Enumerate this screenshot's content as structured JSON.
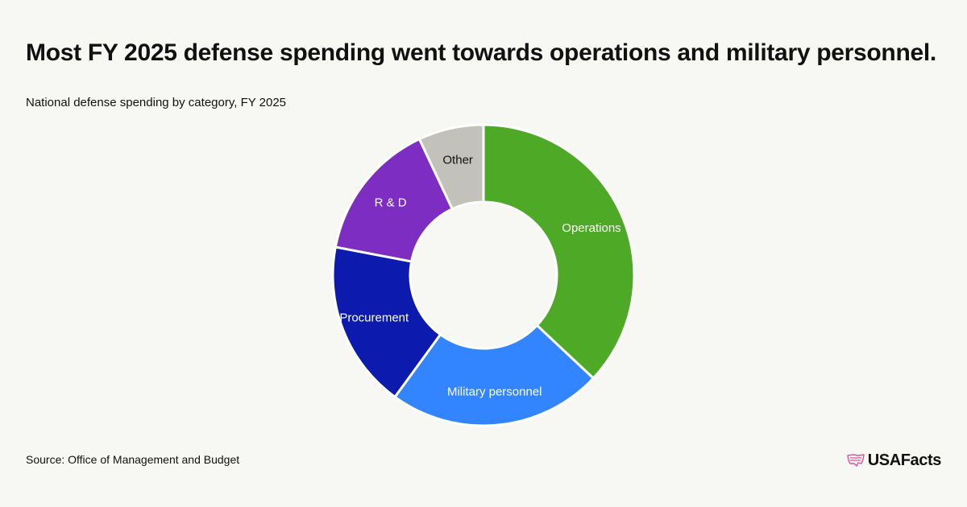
{
  "title": "Most FY 2025 defense spending went towards operations and military personnel.",
  "subtitle": "National defense spending by category, FY 2025",
  "source": "Source: Office of Management and Budget",
  "brand": {
    "name": "USAFacts",
    "mark_icon": "us-map-flag-icon",
    "mark_color": "#e0509a"
  },
  "chart_data": {
    "type": "pie",
    "title": "Most FY 2025 defense spending went towards operations and military personnel.",
    "subtitle": "National defense spending by category, FY 2025",
    "hole": true,
    "labels": [
      "Operations",
      "Military personnel",
      "Procurement",
      "R & D",
      "Other"
    ],
    "values": [
      37,
      23,
      18,
      15,
      7
    ],
    "colors": [
      "#4ea926",
      "#3384ff",
      "#0c1aad",
      "#7e2dc2",
      "#c2c2ba"
    ],
    "label_colors": [
      "#ffffff",
      "#ffffff",
      "#ffffff",
      "#ffffff",
      "#111111"
    ],
    "legend": "none"
  }
}
